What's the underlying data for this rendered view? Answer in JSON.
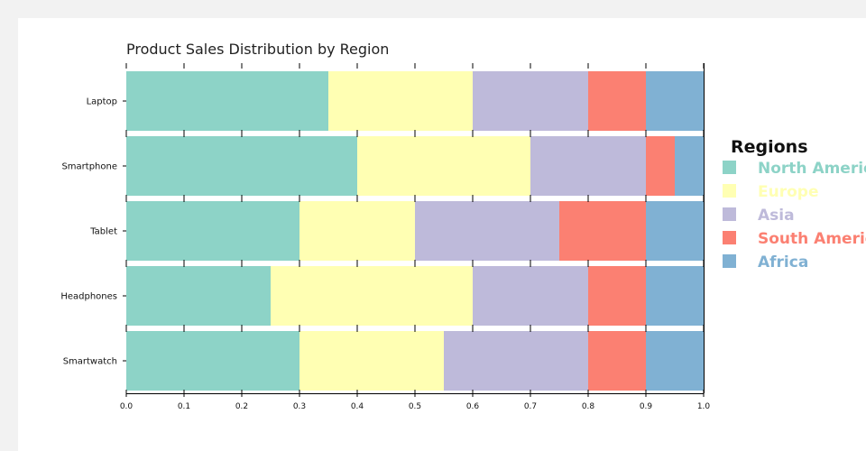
{
  "chart_data": {
    "type": "bar",
    "orientation": "horizontal",
    "stacked": true,
    "title": "Product Sales Distribution by Region",
    "xlabel": "",
    "ylabel": "",
    "xlim": [
      0,
      1
    ],
    "x_ticks": [
      "0.0",
      "0.1",
      "0.2",
      "0.3",
      "0.4",
      "0.5",
      "0.6",
      "0.7",
      "0.8",
      "0.9",
      "1.0"
    ],
    "categories": [
      "Laptop",
      "Smartphone",
      "Tablet",
      "Headphones",
      "Smartwatch"
    ],
    "series": [
      {
        "name": "North America",
        "color": "#8dd3c7",
        "values": [
          0.35,
          0.4,
          0.3,
          0.25,
          0.3
        ]
      },
      {
        "name": "Europe",
        "color": "#ffffb3",
        "values": [
          0.25,
          0.3,
          0.2,
          0.35,
          0.25
        ]
      },
      {
        "name": "Asia",
        "color": "#bebada",
        "values": [
          0.2,
          0.2,
          0.25,
          0.2,
          0.25
        ]
      },
      {
        "name": "South America",
        "color": "#fb8072",
        "values": [
          0.1,
          0.05,
          0.15,
          0.1,
          0.1
        ]
      },
      {
        "name": "Africa",
        "color": "#80b1d3",
        "values": [
          0.1,
          0.05,
          0.1,
          0.1,
          0.1
        ]
      }
    ],
    "legend": {
      "title": "Regions",
      "position": "right"
    }
  }
}
